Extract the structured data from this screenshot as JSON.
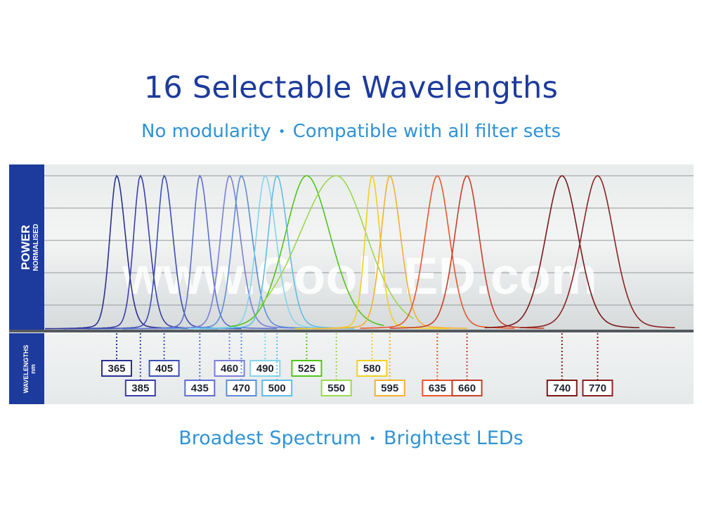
{
  "header": {
    "title": "16 Selectable Wavelengths",
    "subtitle_part1": "No modularity",
    "subtitle_sep": "•",
    "subtitle_part2": "Compatible with all filter sets"
  },
  "footer": {
    "part1": "Broadest Spectrum",
    "sep": "•",
    "part2": "Brightest LEDs"
  },
  "axis": {
    "power_title": "POWER",
    "power_subtitle": "NORMALISED",
    "wavelength_title": "WAVELENGTHS",
    "wavelength_unit": "nm"
  },
  "watermark": "www.CoolLED.com",
  "chart_data": {
    "type": "line",
    "title": "16 Selectable Wavelengths",
    "xlabel": "WAVELENGTHS nm",
    "ylabel": "POWER NORMALISED",
    "ylim": [
      0,
      1
    ],
    "grid": true,
    "series": [
      {
        "name": "365",
        "peak": 365,
        "color": "#2a2f8f",
        "row": "top"
      },
      {
        "name": "385",
        "peak": 385,
        "color": "#3a3fa8",
        "row": "bottom"
      },
      {
        "name": "405",
        "peak": 405,
        "color": "#3b4fb4",
        "row": "top"
      },
      {
        "name": "435",
        "peak": 435,
        "color": "#5c6fcf",
        "row": "bottom"
      },
      {
        "name": "460",
        "peak": 460,
        "color": "#7a7fd8",
        "row": "top"
      },
      {
        "name": "470",
        "peak": 470,
        "color": "#5b8fd8",
        "row": "bottom"
      },
      {
        "name": "490",
        "peak": 490,
        "color": "#84d4ee",
        "row": "top"
      },
      {
        "name": "500",
        "peak": 500,
        "color": "#5fbde6",
        "row": "bottom"
      },
      {
        "name": "525",
        "peak": 525,
        "color": "#52c41a",
        "row": "top"
      },
      {
        "name": "550",
        "peak": 550,
        "color": "#9bd84a",
        "row": "bottom"
      },
      {
        "name": "580",
        "peak": 580,
        "color": "#f0d020",
        "row": "top"
      },
      {
        "name": "595",
        "peak": 595,
        "color": "#f5b02e",
        "row": "bottom"
      },
      {
        "name": "635",
        "peak": 635,
        "color": "#e8572a",
        "row": "bottom"
      },
      {
        "name": "660",
        "peak": 660,
        "color": "#c8402a",
        "row": "bottom"
      },
      {
        "name": "740",
        "peak": 740,
        "color": "#7a1818",
        "row": "bottom"
      },
      {
        "name": "770",
        "peak": 770,
        "color": "#8a2222",
        "row": "bottom"
      }
    ]
  }
}
